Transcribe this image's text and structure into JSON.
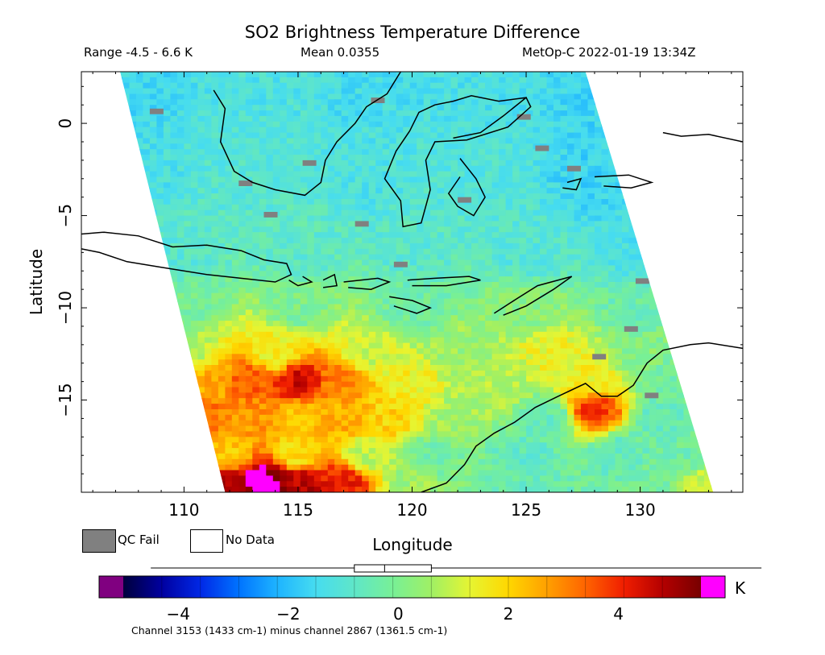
{
  "header": {
    "title": "SO2 Brightness Temperature Difference",
    "range": "Range -4.5 - 6.6 K",
    "mean": "Mean 0.0355",
    "satellite": "MetOp-C 2022-01-19 13:34Z"
  },
  "legend": {
    "qc_fail": "QC Fail",
    "no_data": "No Data",
    "qc_color": "#808080",
    "no_data_color": "#ffffff"
  },
  "colorbar": {
    "unit": "K",
    "min": -5,
    "max": 5.5,
    "ticks": [
      -4,
      -2,
      0,
      2,
      4
    ],
    "under_color": "#800080",
    "over_color": "#ff00ff",
    "stops": [
      "#00003c",
      "#0000a0",
      "#0028e6",
      "#0073ff",
      "#1eb4ff",
      "#46dcf0",
      "#5fe6c8",
      "#78f096",
      "#a0f064",
      "#e6f532",
      "#ffd700",
      "#ffa000",
      "#ff6400",
      "#f01e00",
      "#b40000",
      "#780000"
    ]
  },
  "footer": "Channel 3153 (1433 cm-1) minus channel 2867 (1361.5 cm-1)",
  "chart_data": {
    "type": "heatmap",
    "title": "SO2 Brightness Temperature Difference",
    "xlabel": "Longitude",
    "ylabel": "Latitude",
    "xlim": [
      105.5,
      134.5
    ],
    "ylim": [
      -20,
      2.8
    ],
    "xticks": [
      110,
      115,
      120,
      125,
      130
    ],
    "yticks": [
      0,
      -5,
      -10,
      -15
    ],
    "units": "K",
    "value_range": [
      -4.5,
      6.6
    ],
    "mean": 0.0355,
    "swath_corners_lonlat": [
      [
        107.2,
        2.8
      ],
      [
        127.6,
        2.8
      ],
      [
        133.2,
        -20
      ],
      [
        111.8,
        -20
      ]
    ],
    "field_nodes": [
      {
        "lon": 108,
        "lat": 2,
        "value": -1.5
      },
      {
        "lon": 113,
        "lat": 2,
        "value": -1.2
      },
      {
        "lon": 118,
        "lat": 2,
        "value": -1.4
      },
      {
        "lon": 123,
        "lat": 2,
        "value": -1.3
      },
      {
        "lon": 128,
        "lat": 2,
        "value": -1.6
      },
      {
        "lon": 108,
        "lat": -3,
        "value": -1.3
      },
      {
        "lon": 113,
        "lat": -3,
        "value": -1.0
      },
      {
        "lon": 118,
        "lat": -3,
        "value": -1.2
      },
      {
        "lon": 123,
        "lat": -3,
        "value": -1.1
      },
      {
        "lon": 128,
        "lat": -3,
        "value": -1.6
      },
      {
        "lon": 110,
        "lat": -7,
        "value": -0.9
      },
      {
        "lon": 115,
        "lat": -7,
        "value": -0.8
      },
      {
        "lon": 120,
        "lat": -7,
        "value": -0.9
      },
      {
        "lon": 125,
        "lat": -7,
        "value": -1.0
      },
      {
        "lon": 130,
        "lat": -7,
        "value": -1.3
      },
      {
        "lon": 110,
        "lat": -10,
        "value": -0.2
      },
      {
        "lon": 115,
        "lat": -10,
        "value": 0.0
      },
      {
        "lon": 120,
        "lat": -10,
        "value": -0.3
      },
      {
        "lon": 125,
        "lat": -10,
        "value": 0.2
      },
      {
        "lon": 130,
        "lat": -10,
        "value": -0.4
      },
      {
        "lon": 110,
        "lat": -12.5,
        "value": 0.8
      },
      {
        "lon": 114,
        "lat": -12.5,
        "value": 1.5
      },
      {
        "lon": 118,
        "lat": -12.5,
        "value": 1.0
      },
      {
        "lon": 122,
        "lat": -12.5,
        "value": 0.5
      },
      {
        "lon": 126,
        "lat": -12.5,
        "value": 1.4
      },
      {
        "lon": 130,
        "lat": -12.5,
        "value": 0.2
      },
      {
        "lon": 111,
        "lat": -14,
        "value": 2.5
      },
      {
        "lon": 113,
        "lat": -14,
        "value": 3.5
      },
      {
        "lon": 115,
        "lat": -14,
        "value": 4.5
      },
      {
        "lon": 117,
        "lat": -14,
        "value": 3.0
      },
      {
        "lon": 120,
        "lat": -14,
        "value": 1.5
      },
      {
        "lon": 124,
        "lat": -14,
        "value": 0.8
      },
      {
        "lon": 128,
        "lat": -14,
        "value": 1.5
      },
      {
        "lon": 131,
        "lat": -14,
        "value": -0.2
      },
      {
        "lon": 111,
        "lat": -16,
        "value": 3.2
      },
      {
        "lon": 113,
        "lat": -16,
        "value": 2.8
      },
      {
        "lon": 115,
        "lat": -16,
        "value": 2.2
      },
      {
        "lon": 117,
        "lat": -16,
        "value": 2.5
      },
      {
        "lon": 119,
        "lat": -16,
        "value": 2.0
      },
      {
        "lon": 122,
        "lat": -16,
        "value": 0.6
      },
      {
        "lon": 126,
        "lat": -16,
        "value": -0.5
      },
      {
        "lon": 128,
        "lat": -15.5,
        "value": 3.8
      },
      {
        "lon": 131,
        "lat": -16,
        "value": -0.6
      },
      {
        "lon": 112,
        "lat": -18,
        "value": 2.2
      },
      {
        "lon": 115,
        "lat": -18,
        "value": 1.8
      },
      {
        "lon": 118,
        "lat": -18,
        "value": 0.9
      },
      {
        "lon": 121,
        "lat": -18,
        "value": -0.2
      },
      {
        "lon": 125,
        "lat": -18,
        "value": -0.7
      },
      {
        "lon": 129,
        "lat": -18,
        "value": -0.6
      },
      {
        "lon": 132,
        "lat": -18,
        "value": -0.3
      },
      {
        "lon": 112,
        "lat": -19.5,
        "value": 5.0
      },
      {
        "lon": 113.5,
        "lat": -19.5,
        "value": 6.0
      },
      {
        "lon": 115,
        "lat": -19.5,
        "value": 4.8
      },
      {
        "lon": 117,
        "lat": -19.5,
        "value": 4.2
      },
      {
        "lon": 120,
        "lat": -19.5,
        "value": 0.5
      },
      {
        "lon": 125,
        "lat": -19.5,
        "value": -0.5
      },
      {
        "lon": 130,
        "lat": -19.5,
        "value": -0.2
      },
      {
        "lon": 133,
        "lat": -19.5,
        "value": 1.0
      }
    ],
    "qc_fail_pixels": [
      [
        113.5,
        -4.8
      ],
      [
        118.2,
        1.4
      ],
      [
        126.8,
        -2.3
      ],
      [
        119.2,
        -7.5
      ],
      [
        129.3,
        -11.0
      ],
      [
        127.9,
        -12.5
      ],
      [
        112.4,
        -3.1
      ],
      [
        122.0,
        -4.0
      ],
      [
        130.2,
        -14.6
      ],
      [
        108.5,
        0.8
      ],
      [
        115.2,
        -2.0
      ],
      [
        124.6,
        0.5
      ],
      [
        129.8,
        -8.4
      ],
      [
        117.5,
        -5.3
      ],
      [
        125.4,
        -1.2
      ]
    ],
    "coastlines_lonlat": [
      [
        [
          105.5,
          -6.0
        ],
        [
          106.5,
          -5.9
        ],
        [
          108,
          -6.1
        ],
        [
          109.5,
          -6.7
        ],
        [
          111,
          -6.6
        ],
        [
          112.5,
          -6.9
        ],
        [
          113.5,
          -7.4
        ],
        [
          114.5,
          -7.6
        ],
        [
          114.7,
          -8.2
        ],
        [
          114,
          -8.6
        ],
        [
          112.5,
          -8.4
        ],
        [
          111,
          -8.2
        ],
        [
          109,
          -7.8
        ],
        [
          107.5,
          -7.5
        ],
        [
          106.3,
          -7.0
        ],
        [
          105.5,
          -6.8
        ]
      ],
      [
        [
          111.3,
          1.8
        ],
        [
          111.8,
          0.8
        ],
        [
          111.6,
          -1.0
        ],
        [
          112.2,
          -2.6
        ],
        [
          113,
          -3.2
        ],
        [
          114,
          -3.6
        ],
        [
          115.3,
          -3.9
        ],
        [
          116.0,
          -3.2
        ],
        [
          116.2,
          -2.0
        ],
        [
          116.7,
          -1.0
        ],
        [
          117.5,
          0.0
        ],
        [
          118.0,
          0.9
        ],
        [
          118.9,
          1.6
        ],
        [
          119.5,
          2.8
        ]
      ],
      [
        [
          121.8,
          -0.8
        ],
        [
          123.0,
          -0.5
        ],
        [
          124.0,
          0.4
        ],
        [
          125.0,
          1.4
        ],
        [
          125.2,
          0.9
        ],
        [
          124.2,
          -0.2
        ],
        [
          122.4,
          -0.9
        ],
        [
          121.0,
          -1.0
        ],
        [
          120.6,
          -2.0
        ],
        [
          120.8,
          -3.6
        ],
        [
          120.4,
          -5.4
        ],
        [
          119.6,
          -5.6
        ],
        [
          119.5,
          -4.2
        ],
        [
          118.8,
          -3.0
        ],
        [
          119.3,
          -1.5
        ],
        [
          119.9,
          -0.4
        ],
        [
          120.3,
          0.6
        ],
        [
          121.0,
          1.0
        ],
        [
          121.8,
          1.2
        ],
        [
          122.6,
          1.5
        ],
        [
          123.8,
          1.2
        ],
        [
          125.0,
          1.4
        ]
      ],
      [
        [
          122.1,
          -1.9
        ],
        [
          122.8,
          -3.0
        ],
        [
          123.2,
          -4.0
        ],
        [
          122.7,
          -5.0
        ],
        [
          122.0,
          -4.5
        ],
        [
          121.6,
          -3.8
        ],
        [
          122.1,
          -2.9
        ]
      ],
      [
        [
          115.2,
          -8.3
        ],
        [
          115.6,
          -8.6
        ],
        [
          115.0,
          -8.8
        ],
        [
          114.6,
          -8.5
        ]
      ],
      [
        [
          116.1,
          -8.5
        ],
        [
          116.6,
          -8.2
        ],
        [
          116.7,
          -8.8
        ],
        [
          116.1,
          -8.9
        ]
      ],
      [
        [
          117.0,
          -8.6
        ],
        [
          118.5,
          -8.4
        ],
        [
          119.0,
          -8.6
        ],
        [
          118.2,
          -9.0
        ],
        [
          117.2,
          -8.9
        ]
      ],
      [
        [
          119.8,
          -8.5
        ],
        [
          121.0,
          -8.4
        ],
        [
          122.5,
          -8.3
        ],
        [
          123.0,
          -8.5
        ],
        [
          121.5,
          -8.8
        ],
        [
          120.0,
          -8.8
        ]
      ],
      [
        [
          119.0,
          -9.4
        ],
        [
          120.0,
          -9.6
        ],
        [
          120.8,
          -10.0
        ],
        [
          120.2,
          -10.3
        ],
        [
          119.2,
          -9.9
        ]
      ],
      [
        [
          123.6,
          -10.3
        ],
        [
          124.6,
          -9.5
        ],
        [
          125.5,
          -8.8
        ],
        [
          127.0,
          -8.3
        ],
        [
          126.2,
          -9.0
        ],
        [
          125.0,
          -9.9
        ],
        [
          124.0,
          -10.4
        ]
      ],
      [
        [
          126.8,
          -3.2
        ],
        [
          127.4,
          -3.0
        ],
        [
          127.2,
          -3.6
        ],
        [
          126.6,
          -3.5
        ]
      ],
      [
        [
          128.0,
          -2.9
        ],
        [
          129.5,
          -2.8
        ],
        [
          130.5,
          -3.2
        ],
        [
          129.6,
          -3.5
        ],
        [
          128.4,
          -3.4
        ]
      ],
      [
        [
          131.0,
          -0.5
        ],
        [
          131.8,
          -0.7
        ],
        [
          133.0,
          -0.6
        ],
        [
          134.5,
          -1.0
        ]
      ],
      [
        [
          120.4,
          -20.0
        ],
        [
          121.5,
          -19.5
        ],
        [
          122.3,
          -18.5
        ],
        [
          122.8,
          -17.5
        ],
        [
          123.6,
          -16.8
        ],
        [
          124.5,
          -16.2
        ],
        [
          125.4,
          -15.4
        ],
        [
          126.4,
          -14.8
        ],
        [
          127.6,
          -14.1
        ],
        [
          128.3,
          -14.8
        ],
        [
          129.0,
          -14.8
        ],
        [
          129.7,
          -14.2
        ],
        [
          130.3,
          -13.0
        ],
        [
          131.0,
          -12.3
        ],
        [
          132.2,
          -12.0
        ],
        [
          133.0,
          -11.9
        ],
        [
          134.5,
          -12.2
        ]
      ]
    ]
  }
}
